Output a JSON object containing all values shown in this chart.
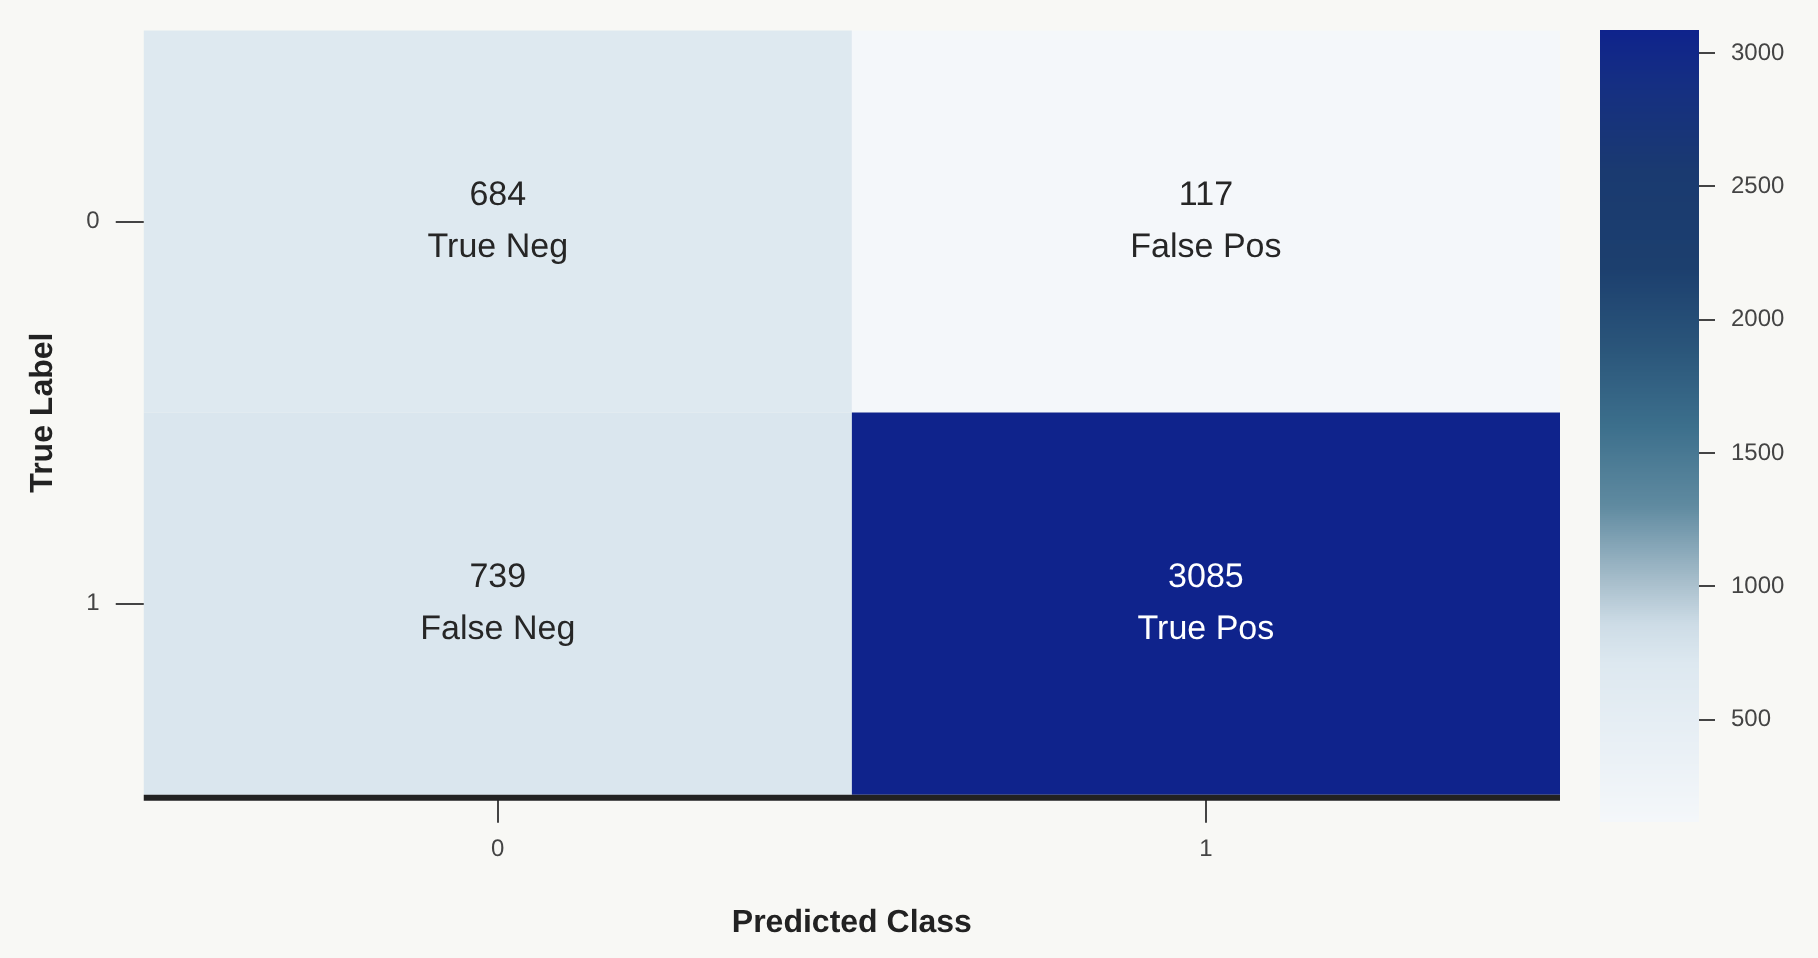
{
  "chart_data": {
    "type": "heatmap",
    "xlabel": "Predicted Class",
    "ylabel": "True Label",
    "categories": [
      "0",
      "1"
    ],
    "y_categories": [
      "0",
      "1"
    ],
    "cells": [
      [
        684,
        117
      ],
      [
        739,
        3085
      ]
    ],
    "cell_labels": [
      [
        "684\nTrue Neg",
        "117\nFalse Pos"
      ],
      [
        "739\nFalse Neg",
        "3085\nTrue Pos"
      ]
    ],
    "clim": [
      117,
      3085
    ],
    "cticks": [
      500,
      1000,
      1500,
      2000,
      2500,
      3000
    ],
    "grid": false,
    "legend": false
  }
}
